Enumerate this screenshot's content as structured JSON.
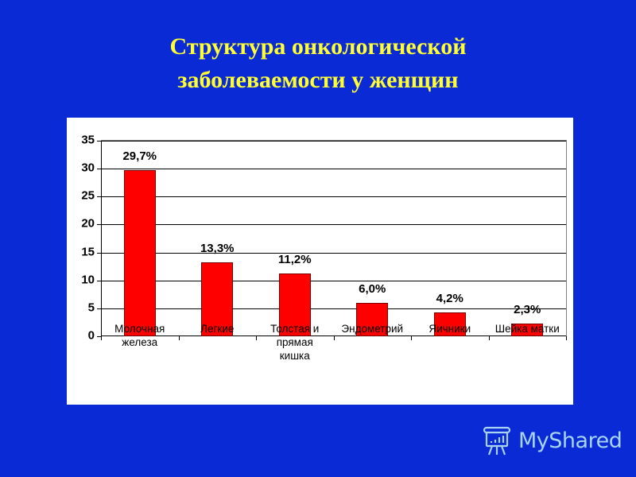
{
  "slide": {
    "title_line1": "Структура онкологической",
    "title_line2": "заболеваемости у женщин",
    "background_color": "#0a2ad6",
    "title_color": "#ffff33"
  },
  "watermark": {
    "icon": "presentation-board-icon",
    "text": "MyShared"
  },
  "chart_data": {
    "type": "bar",
    "title": "Структура онкологической заболеваемости у женщин",
    "xlabel": "",
    "ylabel": "",
    "ylim": [
      0,
      35
    ],
    "yticks": [
      0,
      5,
      10,
      15,
      20,
      25,
      30,
      35
    ],
    "grid": true,
    "legend": null,
    "bar_color": "#ff0000",
    "categories": [
      "Молочная железа",
      "Легкие",
      "Толстая и прямая кишка",
      "Эндометрий",
      "Яичники",
      "Шейка матки"
    ],
    "category_label_lines": [
      [
        "Молочная",
        "железа"
      ],
      [
        "Легкие"
      ],
      [
        "Толстая и",
        "прямая",
        "кишка"
      ],
      [
        "Эндометрий"
      ],
      [
        "Яичники"
      ],
      [
        "Шейка матки"
      ]
    ],
    "values": [
      29.7,
      13.3,
      11.2,
      6.0,
      4.2,
      2.3
    ],
    "data_labels": [
      "29,7%",
      "13,3%",
      "11,2%",
      "6,0%",
      "4,2%",
      "2,3%"
    ]
  }
}
